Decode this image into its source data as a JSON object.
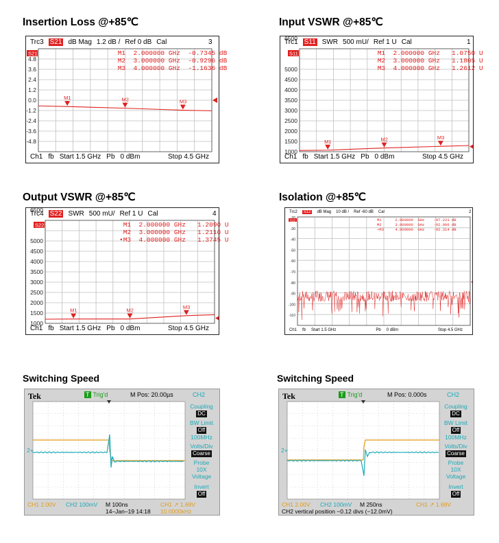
{
  "charts": [
    {
      "title": "Insertion Loss @+85℃",
      "trc": "Trc3",
      "param": "S21",
      "format": "dB Mag",
      "scale": "1.2 dB /",
      "ref": "Ref 0 dB",
      "cal": "Cal",
      "chnum": "3",
      "side_tag": "S21",
      "markers": [
        {
          "label": "M1",
          "freq": "2.000000 GHz",
          "val": "-0.7345 dB"
        },
        {
          "label": "M2",
          "freq": "3.000000 GHz",
          "val": "-0.9296 dB"
        },
        {
          "label": "M3",
          "freq": "4.000000 GHz",
          "val": "-1.1636 dB"
        }
      ],
      "yticks": [
        "4.8",
        "3.6",
        "2.4",
        "1.2",
        "0.0",
        "-1.2",
        "-2.4",
        "-3.6",
        "-4.8"
      ],
      "footer": {
        "ch": "Ch1",
        "fb": "fb",
        "start": "Start  1.5 GHz",
        "pb": "Pb",
        "pwr": "0 dBm",
        "stop": "Stop  4.5 GHz"
      }
    },
    {
      "title": "Input VSWR @+85℃",
      "trc": "Trc1",
      "param": "S11",
      "format": "SWR",
      "scale": "500 mU/",
      "ref": "Ref 1 U",
      "cal": "Cal",
      "chnum": "1",
      "side_tag": "S11",
      "markers": [
        {
          "label": "M1",
          "freq": "2.000000 GHz",
          "val": "1.0750 U"
        },
        {
          "label": "M2",
          "freq": "3.000000 GHz",
          "val": "1.1805 U"
        },
        {
          "label": "M3",
          "freq": "4.000000 GHz",
          "val": "1.2612 U"
        }
      ],
      "yticks": [
        "6500",
        "5000",
        "4500",
        "4000",
        "3500",
        "3000",
        "2500",
        "2000",
        "1500",
        "1000"
      ],
      "footer": {
        "ch": "Ch1",
        "fb": "fb",
        "start": "Start  1.5 GHz",
        "pb": "Pb",
        "pwr": "0 dBm",
        "stop": "Stop  4.5 GHz"
      }
    },
    {
      "title": "Output VSWR @+85℃",
      "trc": "Trc4",
      "param": "S22",
      "format": "SWR",
      "scale": "500 mU/",
      "ref": "Ref 1 U",
      "cal": "Cal",
      "chnum": "4",
      "side_tag": "S22",
      "markers": [
        {
          "label": "M1",
          "freq": "2.000000 GHz",
          "val": "1.2090 U"
        },
        {
          "label": "M2",
          "freq": "3.000000 GHz",
          "val": "1.2110 U"
        },
        {
          "label": "•M3",
          "freq": "4.000000 GHz",
          "val": "1.3745 U"
        }
      ],
      "yticks": [
        "6500",
        "5000",
        "4500",
        "4000",
        "3500",
        "3000",
        "2500",
        "2000",
        "1500",
        "1000"
      ],
      "footer": {
        "ch": "Ch1",
        "fb": "fb",
        "start": "Start  1.5 GHz",
        "pb": "Pb",
        "pwr": "0 dBm",
        "stop": "Stop  4.5 GHz"
      }
    },
    {
      "title": "Isolation @+85℃",
      "trc": "Trc2",
      "param": "S12",
      "format": "dB Mag",
      "scale": "10 dB /",
      "ref": "Ref -60 dB",
      "cal": "Cal",
      "chnum": "2",
      "side_tag": "S12",
      "markers": [
        {
          "label": "M1",
          "freq": "2.000000",
          "unit": "GHz",
          "val": "-97.221",
          "vunit": "dB"
        },
        {
          "label": "M2",
          "freq": "3.000000",
          "unit": "GHz",
          "val": "-92.996",
          "vunit": "dB"
        },
        {
          "label": "•M3",
          "freq": "4.000000",
          "unit": "GHz",
          "val": "-92.314",
          "vunit": "dB"
        }
      ],
      "yticks": [
        "-20",
        "-30",
        "-40",
        "-50",
        "-60",
        "-70",
        "-80",
        "-90",
        "-100",
        "-110"
      ],
      "footer": {
        "ch": "Ch1",
        "fb": "fb",
        "start": "Start  1.5 GHz",
        "pb": "Pb",
        "pwr": "0 dBm",
        "stop": "Stop  4.5 GHz"
      }
    }
  ],
  "scopes": [
    {
      "title": "Switching Speed",
      "brand": "Tek",
      "trig": "Trig'd",
      "mpos": "M Pos: 20.00µs",
      "ch": "CH2",
      "side": [
        {
          "label": "Coupling",
          "value": "DC"
        },
        {
          "label": "BW Limit",
          "value": "Off",
          "extra": "100MHz"
        },
        {
          "label": "Volts/Div",
          "value": "Coarse"
        },
        {
          "label": "Probe\n10X\nVoltage",
          "value": ""
        },
        {
          "label": "Invert",
          "value": "Off"
        }
      ],
      "ch1": "CH1  2.00V",
      "ch2": "CH2  100mV",
      "time": "M 100ns",
      "date": "14–Jan–19 14:18",
      "trigch": "CH1  ↗ 1.69V",
      "freq": "10.0000kHz",
      "marker2": "2+"
    },
    {
      "title": "Switching Speed",
      "brand": "Tek",
      "trig": "Trig'd",
      "mpos": "M Pos: 0.000s",
      "ch": "CH2",
      "side": [
        {
          "label": "Coupling",
          "value": "DC"
        },
        {
          "label": "BW Limit",
          "value": "Off",
          "extra": "100MHz"
        },
        {
          "label": "Volts/Div",
          "value": "Coarse"
        },
        {
          "label": "Probe\n10X\nVoltage",
          "value": ""
        },
        {
          "label": "Invert",
          "value": "Off"
        }
      ],
      "ch1": "CH1  2.00V",
      "ch2": "CH2  100mV",
      "time": "M 250ns",
      "trigch": "CH1  ↗ 1.69V",
      "note": "CH2 vertical position −0.12 divs (−12.0mV)",
      "marker2": "2+"
    }
  ],
  "chart_data": [
    {
      "type": "line",
      "title": "Insertion Loss @+85℃",
      "ylabel": "dB",
      "x": [
        1.5,
        2.0,
        3.0,
        4.0,
        4.5
      ],
      "xunit": "GHz",
      "series": [
        {
          "name": "S21",
          "values": [
            -0.66,
            -0.7345,
            -0.9296,
            -1.1636,
            -1.23
          ]
        }
      ],
      "ylim": [
        -6,
        6
      ]
    },
    {
      "type": "line",
      "title": "Input VSWR @+85℃",
      "ylabel": "SWR",
      "x": [
        1.5,
        2.0,
        3.0,
        4.0,
        4.5
      ],
      "xunit": "GHz",
      "series": [
        {
          "name": "S11",
          "values": [
            1.06,
            1.075,
            1.1805,
            1.2612,
            1.3
          ]
        }
      ],
      "ylim": [
        1,
        6
      ]
    },
    {
      "type": "line",
      "title": "Output VSWR @+85℃",
      "ylabel": "SWR",
      "x": [
        1.5,
        2.0,
        3.0,
        4.0,
        4.5
      ],
      "xunit": "GHz",
      "series": [
        {
          "name": "S22",
          "values": [
            1.2,
            1.209,
            1.211,
            1.3745,
            1.42
          ]
        }
      ],
      "ylim": [
        1,
        6
      ]
    },
    {
      "type": "line",
      "title": "Isolation @+85℃",
      "ylabel": "dB",
      "x": [
        2.0,
        3.0,
        4.0
      ],
      "xunit": "GHz",
      "series": [
        {
          "name": "S12",
          "values": [
            -97.221,
            -92.996,
            -92.314
          ]
        }
      ],
      "ylim": [
        -120,
        -20
      ]
    }
  ]
}
